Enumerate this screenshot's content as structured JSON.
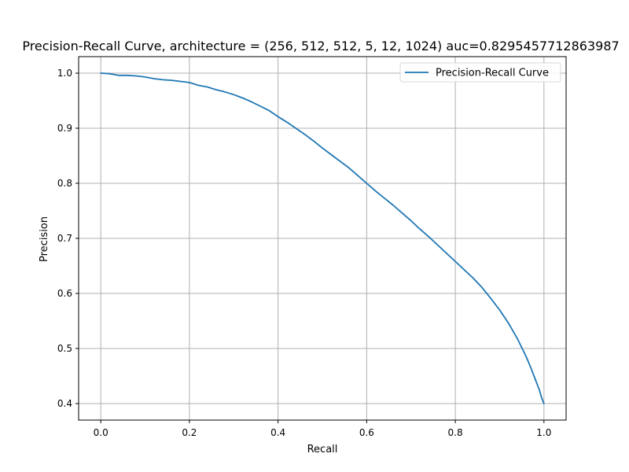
{
  "chart_data": {
    "type": "line",
    "title": "Precision-Recall Curve, architecture = (256, 512, 512, 5, 12, 1024) auc=0.8295457712863987",
    "xlabel": "Recall",
    "ylabel": "Precision",
    "xlim": [
      -0.05,
      1.05
    ],
    "ylim": [
      0.37,
      1.03
    ],
    "xticks": [
      0.0,
      0.2,
      0.4,
      0.6,
      0.8,
      1.0
    ],
    "xtick_labels": [
      "0.0",
      "0.2",
      "0.4",
      "0.6",
      "0.8",
      "1.0"
    ],
    "yticks": [
      0.4,
      0.5,
      0.6,
      0.7,
      0.8,
      0.9,
      1.0
    ],
    "ytick_labels": [
      "0.4",
      "0.5",
      "0.6",
      "0.7",
      "0.8",
      "0.9",
      "1.0"
    ],
    "grid": true,
    "legend_position": "upper right",
    "series": [
      {
        "name": "Precision-Recall Curve",
        "color": "#1f77b4",
        "x": [
          0.0,
          0.02,
          0.04,
          0.06,
          0.08,
          0.1,
          0.12,
          0.14,
          0.16,
          0.18,
          0.2,
          0.22,
          0.24,
          0.26,
          0.28,
          0.3,
          0.32,
          0.34,
          0.36,
          0.38,
          0.4,
          0.42,
          0.44,
          0.46,
          0.48,
          0.5,
          0.52,
          0.54,
          0.56,
          0.58,
          0.6,
          0.62,
          0.64,
          0.66,
          0.68,
          0.7,
          0.72,
          0.74,
          0.76,
          0.78,
          0.8,
          0.82,
          0.84,
          0.86,
          0.88,
          0.9,
          0.92,
          0.94,
          0.96,
          0.97,
          0.98,
          0.99,
          0.995,
          1.0
        ],
        "y": [
          1.0,
          0.999,
          0.996,
          0.996,
          0.995,
          0.993,
          0.99,
          0.988,
          0.987,
          0.985,
          0.983,
          0.978,
          0.975,
          0.97,
          0.966,
          0.961,
          0.955,
          0.948,
          0.94,
          0.932,
          0.921,
          0.911,
          0.9,
          0.889,
          0.877,
          0.864,
          0.852,
          0.84,
          0.828,
          0.814,
          0.8,
          0.786,
          0.773,
          0.76,
          0.746,
          0.732,
          0.717,
          0.703,
          0.688,
          0.673,
          0.658,
          0.643,
          0.628,
          0.611,
          0.591,
          0.57,
          0.546,
          0.518,
          0.485,
          0.466,
          0.445,
          0.424,
          0.41,
          0.4
        ]
      }
    ]
  }
}
